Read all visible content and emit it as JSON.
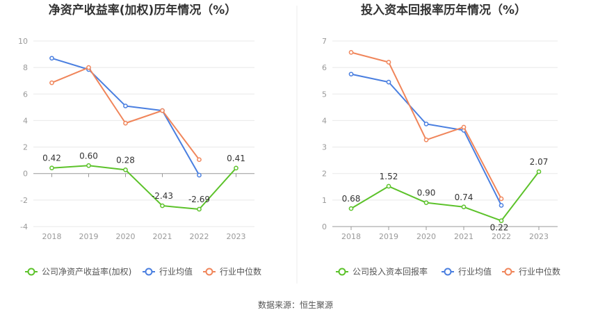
{
  "source_note": "数据来源：恒生聚源",
  "colors": {
    "company": "#5cc22a",
    "average": "#4a7fe0",
    "median": "#f0855a",
    "grid": "#e8e8e8",
    "axis": "#999999"
  },
  "chart_data": [
    {
      "type": "line",
      "title": "净资产收益率(加权)历年情况（%）",
      "categories": [
        "2018",
        "2019",
        "2020",
        "2021",
        "2022",
        "2023"
      ],
      "ylim": [
        -4,
        10
      ],
      "yticks": [
        -4,
        -2,
        0,
        2,
        4,
        6,
        8,
        10
      ],
      "grid": true,
      "legend_position": "bottom",
      "series": [
        {
          "name": "公司净资产收益率(加权)",
          "values": [
            0.42,
            0.6,
            0.28,
            -2.43,
            -2.69,
            0.41
          ],
          "labels": [
            "0.42",
            "0.60",
            "0.28",
            "-2.43",
            "-2.69",
            "0.41"
          ]
        },
        {
          "name": "行业均值",
          "values": [
            8.7,
            7.85,
            5.1,
            4.75,
            -0.12,
            null
          ]
        },
        {
          "name": "行业中位数",
          "values": [
            6.85,
            8.0,
            3.8,
            4.75,
            1.05,
            null
          ]
        }
      ]
    },
    {
      "type": "line",
      "title": "投入资本回报率历年情况（%）",
      "categories": [
        "2018",
        "2019",
        "2020",
        "2021",
        "2022",
        "2023"
      ],
      "ylim": [
        0,
        7
      ],
      "yticks": [
        0,
        1,
        2,
        3,
        4,
        5,
        6,
        7
      ],
      "grid": true,
      "legend_position": "bottom",
      "series": [
        {
          "name": "公司投入资本回报率",
          "values": [
            0.68,
            1.52,
            0.9,
            0.74,
            0.22,
            2.07
          ],
          "labels": [
            "0.68",
            "1.52",
            "0.90",
            "0.74",
            "0.22",
            "2.07"
          ]
        },
        {
          "name": "行业均值",
          "values": [
            5.75,
            5.45,
            3.87,
            3.63,
            0.8,
            null
          ]
        },
        {
          "name": "行业中位数",
          "values": [
            6.57,
            6.2,
            3.27,
            3.75,
            1.05,
            null
          ]
        }
      ]
    }
  ]
}
